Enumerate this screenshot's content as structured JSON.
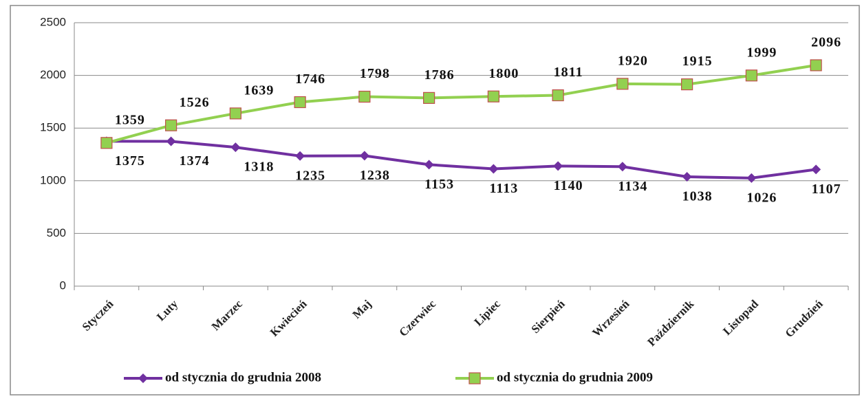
{
  "chart_data": {
    "type": "line",
    "categories": [
      "Styczeń",
      "Luty",
      "Marzec",
      "Kwiecień",
      "Maj",
      "Czerwiec",
      "Lipiec",
      "Sierpień",
      "Wrzesień",
      "Październik",
      "Listopad",
      "Grudzień"
    ],
    "series": [
      {
        "name": "od stycznia do grudnia 2008",
        "color": "#7030a0",
        "marker": "diamond",
        "values": [
          1375,
          1374,
          1318,
          1235,
          1238,
          1153,
          1113,
          1140,
          1134,
          1038,
          1026,
          1107
        ]
      },
      {
        "name": "od stycznia do grudnia 2009",
        "color": "#92d050",
        "marker": "square",
        "values": [
          1359,
          1526,
          1639,
          1746,
          1798,
          1786,
          1800,
          1811,
          1920,
          1915,
          1999,
          2096
        ]
      }
    ],
    "ylim": [
      0,
      2500
    ],
    "yticks": [
      0,
      500,
      1000,
      1500,
      2000,
      2500
    ],
    "grid": true,
    "legend": "bottom"
  }
}
